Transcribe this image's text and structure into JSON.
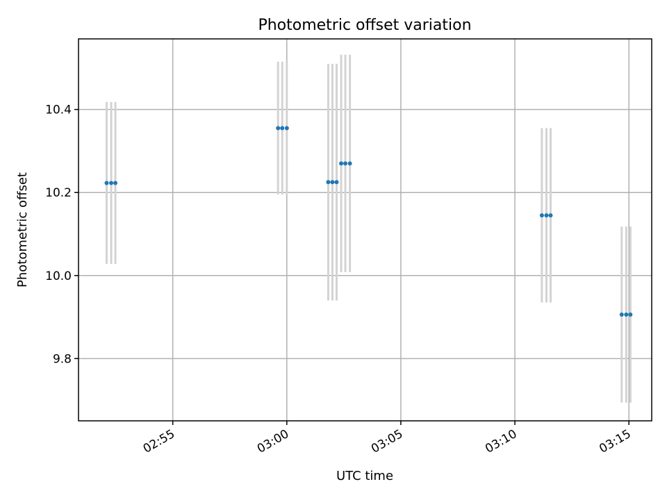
{
  "chart_data": {
    "type": "scatter",
    "title": "Photometric offset variation",
    "xlabel": "UTC time",
    "ylabel": "Photometric offset",
    "x_axis_type": "time",
    "xlim": [
      "02:50:52",
      "03:16:00"
    ],
    "ylim": [
      9.65,
      10.57
    ],
    "x_ticks": [
      "02:55",
      "03:00",
      "03:05",
      "03:10",
      "03:15"
    ],
    "y_ticks": [
      9.8,
      10.0,
      10.2,
      10.4
    ],
    "y_tick_labels": [
      "9.8",
      "10.0",
      "10.2",
      "10.4"
    ],
    "grid": true,
    "series": [
      {
        "marker_color": "#1f77b4",
        "errorbar_color": "#d3d3d3",
        "points": [
          {
            "x": "02:52:06",
            "y": 10.223,
            "yerr": 0.195
          },
          {
            "x": "02:52:18",
            "y": 10.223,
            "yerr": 0.195
          },
          {
            "x": "02:52:29",
            "y": 10.223,
            "yerr": 0.195
          },
          {
            "x": "02:59:37",
            "y": 10.355,
            "yerr": 0.16
          },
          {
            "x": "02:59:48",
            "y": 10.355,
            "yerr": 0.16
          },
          {
            "x": "03:00:00",
            "y": 10.355,
            "yerr": 0.16
          },
          {
            "x": "03:01:49",
            "y": 10.225,
            "yerr": 0.285
          },
          {
            "x": "03:02:00",
            "y": 10.225,
            "yerr": 0.285
          },
          {
            "x": "03:02:11",
            "y": 10.225,
            "yerr": 0.285
          },
          {
            "x": "03:02:23",
            "y": 10.27,
            "yerr": 0.262
          },
          {
            "x": "03:02:34",
            "y": 10.27,
            "yerr": 0.262
          },
          {
            "x": "03:02:46",
            "y": 10.27,
            "yerr": 0.262
          },
          {
            "x": "03:11:11",
            "y": 10.145,
            "yerr": 0.21
          },
          {
            "x": "03:11:23",
            "y": 10.145,
            "yerr": 0.21
          },
          {
            "x": "03:11:34",
            "y": 10.145,
            "yerr": 0.21
          },
          {
            "x": "03:14:41",
            "y": 9.906,
            "yerr": 0.212
          },
          {
            "x": "03:14:53",
            "y": 9.906,
            "yerr": 0.212
          },
          {
            "x": "03:15:04",
            "y": 9.906,
            "yerr": 0.212
          }
        ]
      }
    ]
  }
}
